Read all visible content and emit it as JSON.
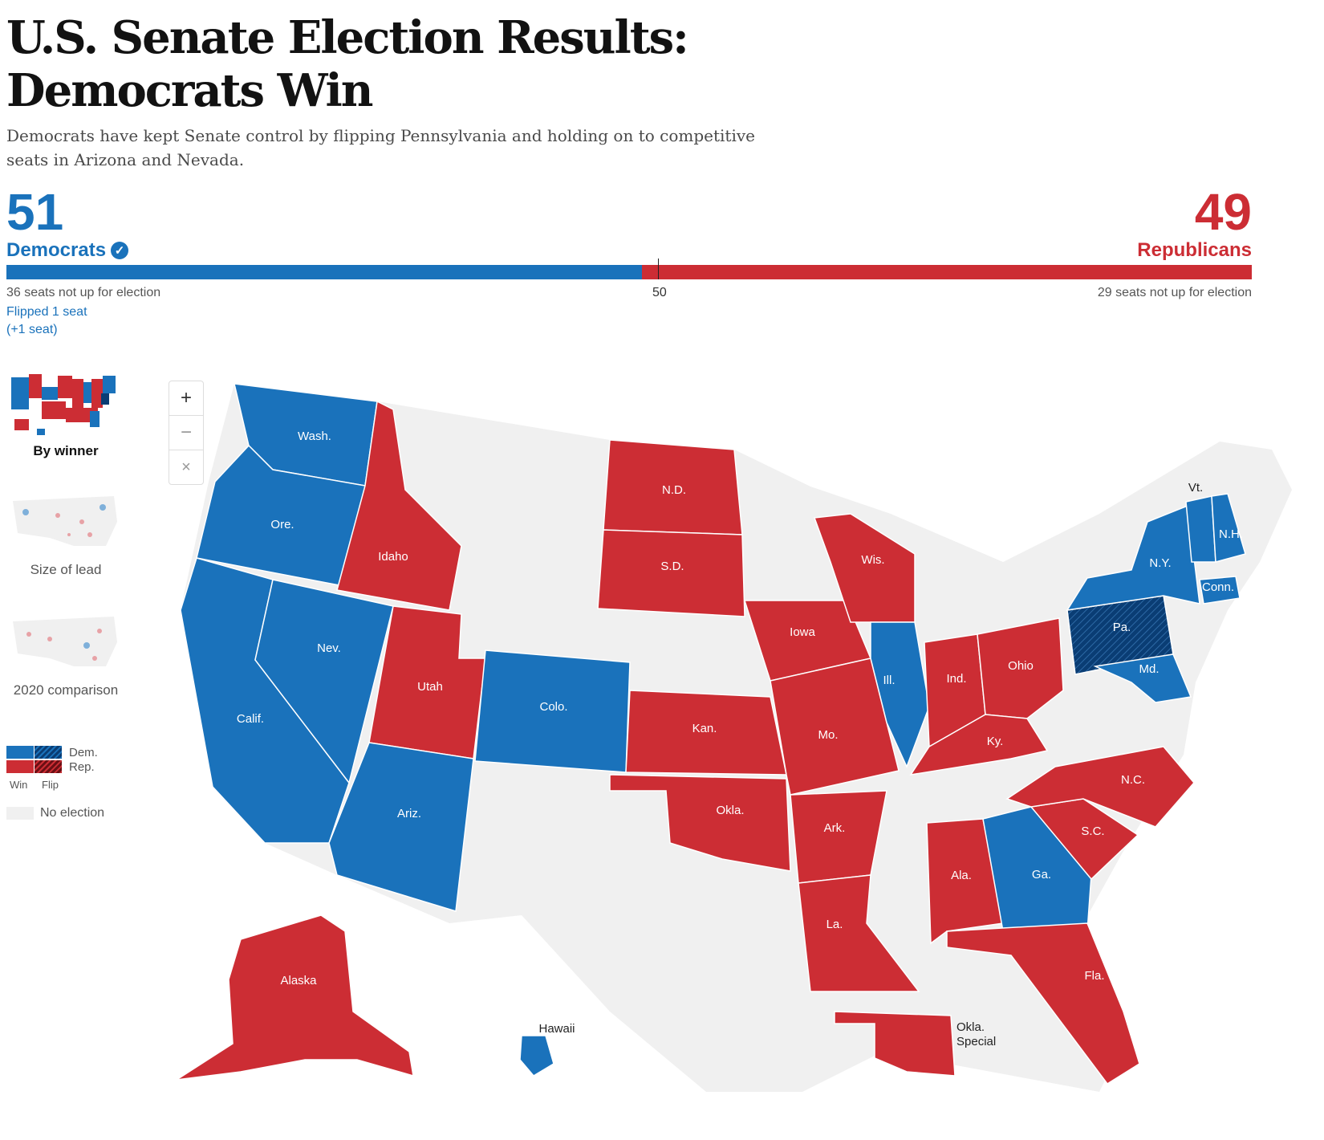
{
  "headline": "U.S. Senate Election Results: Democrats Win",
  "dek": "Democrats have kept Senate control by flipping Pennsylvania and holding on to competitive seats in Arizona and Nevada.",
  "colors": {
    "dem": "#1a72bb",
    "rep": "#cc2d34",
    "dem_flip": "#0a3d74",
    "no_election": "#f0f0f0"
  },
  "seats": {
    "dem_total": "51",
    "dem_label": "Democrats",
    "rep_total": "49",
    "rep_label": "Republicans",
    "dem_count": 51,
    "rep_count": 49,
    "majority_label": "50",
    "dem_not_up": "36 seats not up for election",
    "rep_not_up": "29 seats not up for election",
    "dem_flipped": "Flipped 1 seat",
    "dem_flipped_change": "(+1 seat)"
  },
  "views": [
    {
      "label": "By winner",
      "selected": true
    },
    {
      "label": "Size of lead",
      "selected": false
    },
    {
      "label": "2020 comparison",
      "selected": false
    }
  ],
  "zoom": {
    "zoom_in": "+",
    "zoom_out": "−",
    "reset": "×"
  },
  "legend": {
    "dem": "Dem.",
    "rep": "Rep.",
    "win": "Win",
    "flip": "Flip",
    "no_election": "No election"
  },
  "icons": [
    "check-circle-icon",
    "plus-icon",
    "minus-icon",
    "close-icon"
  ],
  "states": [
    {
      "label": "Wash.",
      "winner": "dem"
    },
    {
      "label": "Ore.",
      "winner": "dem"
    },
    {
      "label": "Calif.",
      "winner": "dem"
    },
    {
      "label": "Nev.",
      "winner": "dem"
    },
    {
      "label": "Idaho",
      "winner": "rep"
    },
    {
      "label": "Utah",
      "winner": "rep"
    },
    {
      "label": "Ariz.",
      "winner": "dem"
    },
    {
      "label": "Colo.",
      "winner": "dem"
    },
    {
      "label": "N.D.",
      "winner": "rep"
    },
    {
      "label": "S.D.",
      "winner": "rep"
    },
    {
      "label": "Kan.",
      "winner": "rep"
    },
    {
      "label": "Okla.",
      "winner": "rep"
    },
    {
      "label": "Iowa",
      "winner": "rep"
    },
    {
      "label": "Mo.",
      "winner": "rep"
    },
    {
      "label": "Ark.",
      "winner": "rep"
    },
    {
      "label": "La.",
      "winner": "rep"
    },
    {
      "label": "Wis.",
      "winner": "rep"
    },
    {
      "label": "Ill.",
      "winner": "dem"
    },
    {
      "label": "Ind.",
      "winner": "rep"
    },
    {
      "label": "Ohio",
      "winner": "rep"
    },
    {
      "label": "Ky.",
      "winner": "rep"
    },
    {
      "label": "Ala.",
      "winner": "rep"
    },
    {
      "label": "Ga.",
      "winner": "dem"
    },
    {
      "label": "Fla.",
      "winner": "rep"
    },
    {
      "label": "S.C.",
      "winner": "rep"
    },
    {
      "label": "N.C.",
      "winner": "rep"
    },
    {
      "label": "Pa.",
      "winner": "dem_flip"
    },
    {
      "label": "Md.",
      "winner": "dem"
    },
    {
      "label": "N.Y.",
      "winner": "dem"
    },
    {
      "label": "Conn.",
      "winner": "dem"
    },
    {
      "label": "Vt.",
      "winner": "dem"
    },
    {
      "label": "N.H.",
      "winner": "dem"
    },
    {
      "label": "Alaska",
      "winner": "rep"
    },
    {
      "label": "Hawaii",
      "winner": "dem"
    },
    {
      "label": "Okla. Special",
      "winner": "rep"
    }
  ]
}
